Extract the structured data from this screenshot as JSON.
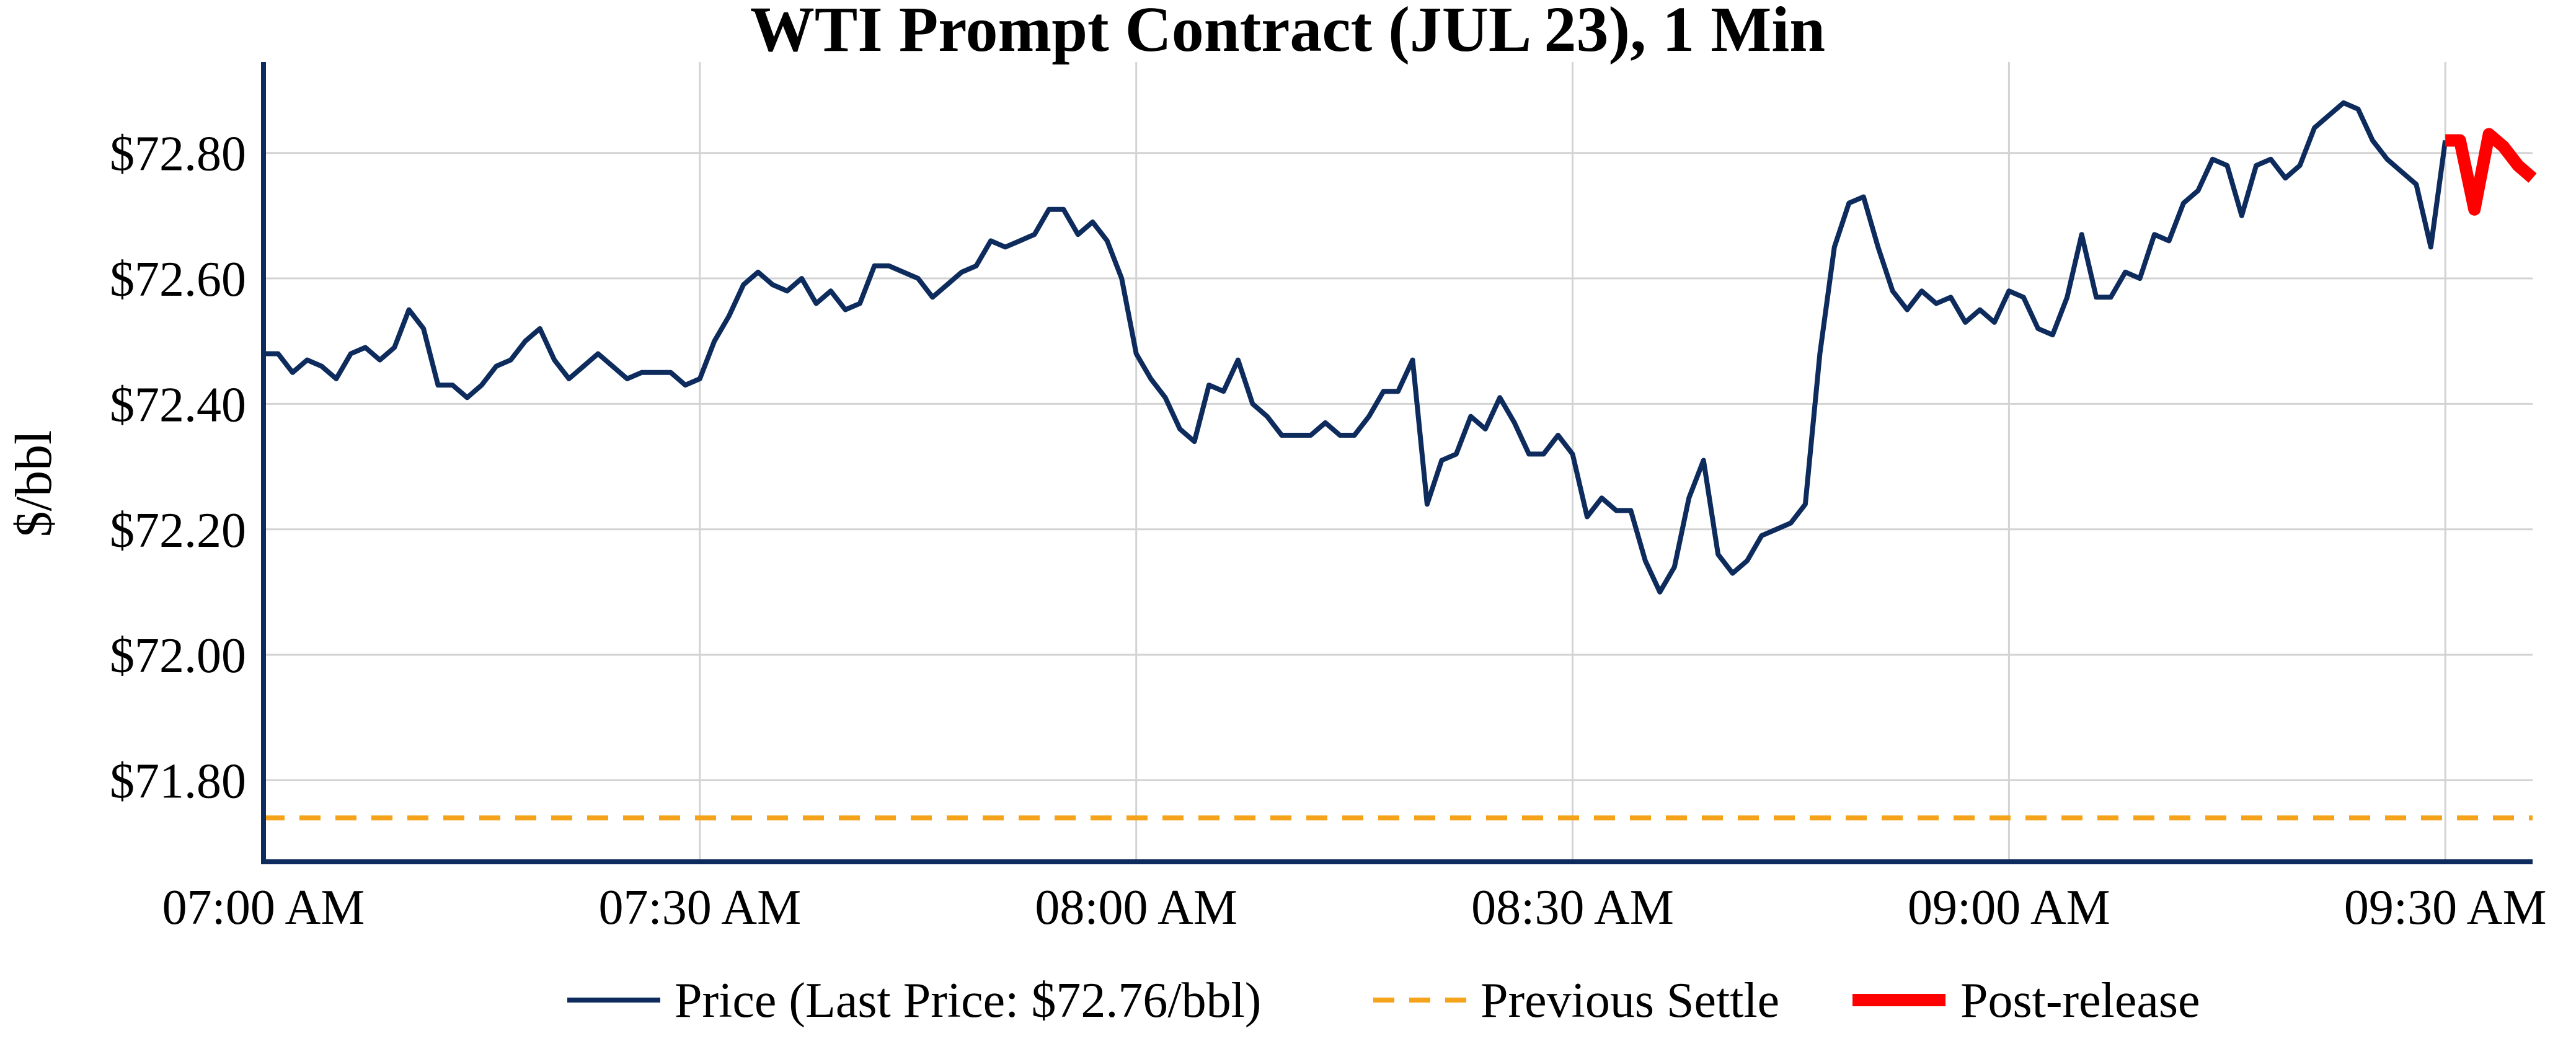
{
  "chart_data": {
    "type": "line",
    "title": "WTI Prompt Contract (JUL 23), 1 Min",
    "ylabel": "$/bbl",
    "xlabel": "",
    "ylim": [
      71.67,
      72.945
    ],
    "x_range_minutes": [
      0,
      156
    ],
    "grid": true,
    "legend_position": "bottom",
    "y_ticks": [
      71.8,
      72.0,
      72.2,
      72.4,
      72.6,
      72.8
    ],
    "y_tick_labels": [
      "$71.80",
      "$72.00",
      "$72.20",
      "$72.40",
      "$72.60",
      "$72.80"
    ],
    "x_ticks": [
      0,
      30,
      60,
      90,
      120,
      150
    ],
    "x_tick_labels": [
      "07:00 AM",
      "07:30 AM",
      "08:00 AM",
      "08:30 AM",
      "09:00 AM",
      "09:30 AM"
    ],
    "colors": {
      "price": "#0d2b5c",
      "previous_settle": "#f5a31a",
      "post_release": "#ff0000",
      "axis": "#0d2b5c",
      "grid": "#d3d3d3"
    },
    "series": [
      {
        "name": "Price (Last Price: $72.76/bbl)",
        "style": "solid",
        "x": [
          0,
          1,
          2,
          3,
          4,
          5,
          6,
          7,
          8,
          9,
          10,
          11,
          12,
          13,
          14,
          15,
          16,
          17,
          18,
          19,
          20,
          21,
          22,
          23,
          24,
          25,
          26,
          27,
          28,
          29,
          30,
          31,
          32,
          33,
          34,
          35,
          36,
          37,
          38,
          39,
          40,
          41,
          42,
          43,
          44,
          45,
          46,
          47,
          48,
          49,
          50,
          51,
          52,
          53,
          54,
          55,
          56,
          57,
          58,
          59,
          60,
          61,
          62,
          63,
          64,
          65,
          66,
          67,
          68,
          69,
          70,
          71,
          72,
          73,
          74,
          75,
          76,
          77,
          78,
          79,
          80,
          81,
          82,
          83,
          84,
          85,
          86,
          87,
          88,
          89,
          90,
          91,
          92,
          93,
          94,
          95,
          96,
          97,
          98,
          99,
          100,
          101,
          102,
          103,
          104,
          105,
          106,
          107,
          108,
          109,
          110,
          111,
          112,
          113,
          114,
          115,
          116,
          117,
          118,
          119,
          120,
          121,
          122,
          123,
          124,
          125,
          126,
          127,
          128,
          129,
          130,
          131,
          132,
          133,
          134,
          135,
          136,
          137,
          138,
          139,
          140,
          141,
          142,
          143,
          144,
          145,
          146,
          147,
          148,
          149,
          150
        ],
        "values": [
          72.48,
          72.48,
          72.45,
          72.47,
          72.46,
          72.44,
          72.48,
          72.49,
          72.47,
          72.49,
          72.55,
          72.52,
          72.43,
          72.43,
          72.41,
          72.43,
          72.46,
          72.47,
          72.5,
          72.52,
          72.47,
          72.44,
          72.46,
          72.48,
          72.46,
          72.44,
          72.45,
          72.45,
          72.45,
          72.43,
          72.44,
          72.5,
          72.54,
          72.59,
          72.61,
          72.59,
          72.58,
          72.6,
          72.56,
          72.58,
          72.55,
          72.56,
          72.62,
          72.62,
          72.61,
          72.6,
          72.57,
          72.59,
          72.61,
          72.62,
          72.66,
          72.65,
          72.66,
          72.67,
          72.71,
          72.71,
          72.67,
          72.69,
          72.66,
          72.6,
          72.48,
          72.44,
          72.41,
          72.36,
          72.34,
          72.43,
          72.42,
          72.47,
          72.4,
          72.38,
          72.35,
          72.35,
          72.35,
          72.37,
          72.35,
          72.35,
          72.38,
          72.42,
          72.42,
          72.47,
          72.24,
          72.31,
          72.32,
          72.38,
          72.36,
          72.41,
          72.37,
          72.32,
          72.32,
          72.35,
          72.32,
          72.22,
          72.25,
          72.23,
          72.23,
          72.15,
          72.1,
          72.14,
          72.25,
          72.31,
          72.16,
          72.13,
          72.15,
          72.19,
          72.2,
          72.21,
          72.24,
          72.48,
          72.65,
          72.72,
          72.73,
          72.65,
          72.58,
          72.55,
          72.58,
          72.56,
          72.57,
          72.53,
          72.55,
          72.53,
          72.58,
          72.57,
          72.52,
          72.51,
          72.57,
          72.67,
          72.57,
          72.57,
          72.61,
          72.6,
          72.67,
          72.66,
          72.72,
          72.74,
          72.79,
          72.78,
          72.7,
          72.78,
          72.79,
          72.76,
          72.78,
          72.84,
          72.86,
          72.88,
          72.87,
          72.82,
          72.79,
          72.77,
          72.75,
          72.65,
          72.82
        ]
      },
      {
        "name": "Previous Settle",
        "style": "dashed",
        "x": [
          0,
          156
        ],
        "values": [
          71.74,
          71.74
        ]
      },
      {
        "name": "Post-release",
        "style": "solid-thick",
        "x": [
          150,
          151,
          152,
          153,
          154,
          155,
          156
        ],
        "values": [
          72.82,
          72.82,
          72.71,
          72.83,
          72.81,
          72.78,
          72.76
        ]
      }
    ]
  }
}
